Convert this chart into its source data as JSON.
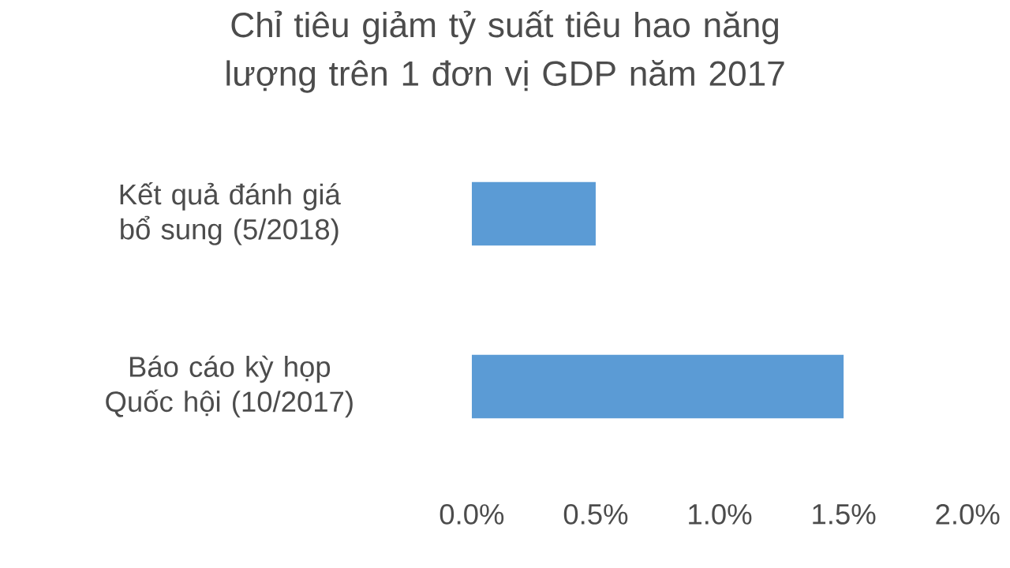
{
  "chart_data": {
    "type": "bar",
    "orientation": "horizontal",
    "title": "Chỉ tiêu giảm tỷ suất tiêu hao năng lượng trên 1 đơn vị GDP năm 2017",
    "categories": [
      "Kết quả đánh giá bổ sung (5/2018)",
      "Báo cáo kỳ họp Quốc hội (10/2017)"
    ],
    "values": [
      0.5,
      1.5
    ],
    "color": "#5b9bd5",
    "xlim": [
      0,
      2
    ],
    "xticks": [
      {
        "value": 0,
        "label": "0.0%"
      },
      {
        "value": 0.5,
        "label": "0.5%"
      },
      {
        "value": 1,
        "label": "1.0%"
      },
      {
        "value": 1.5,
        "label": "1.5%"
      },
      {
        "value": 2,
        "label": "2.0%"
      }
    ]
  }
}
